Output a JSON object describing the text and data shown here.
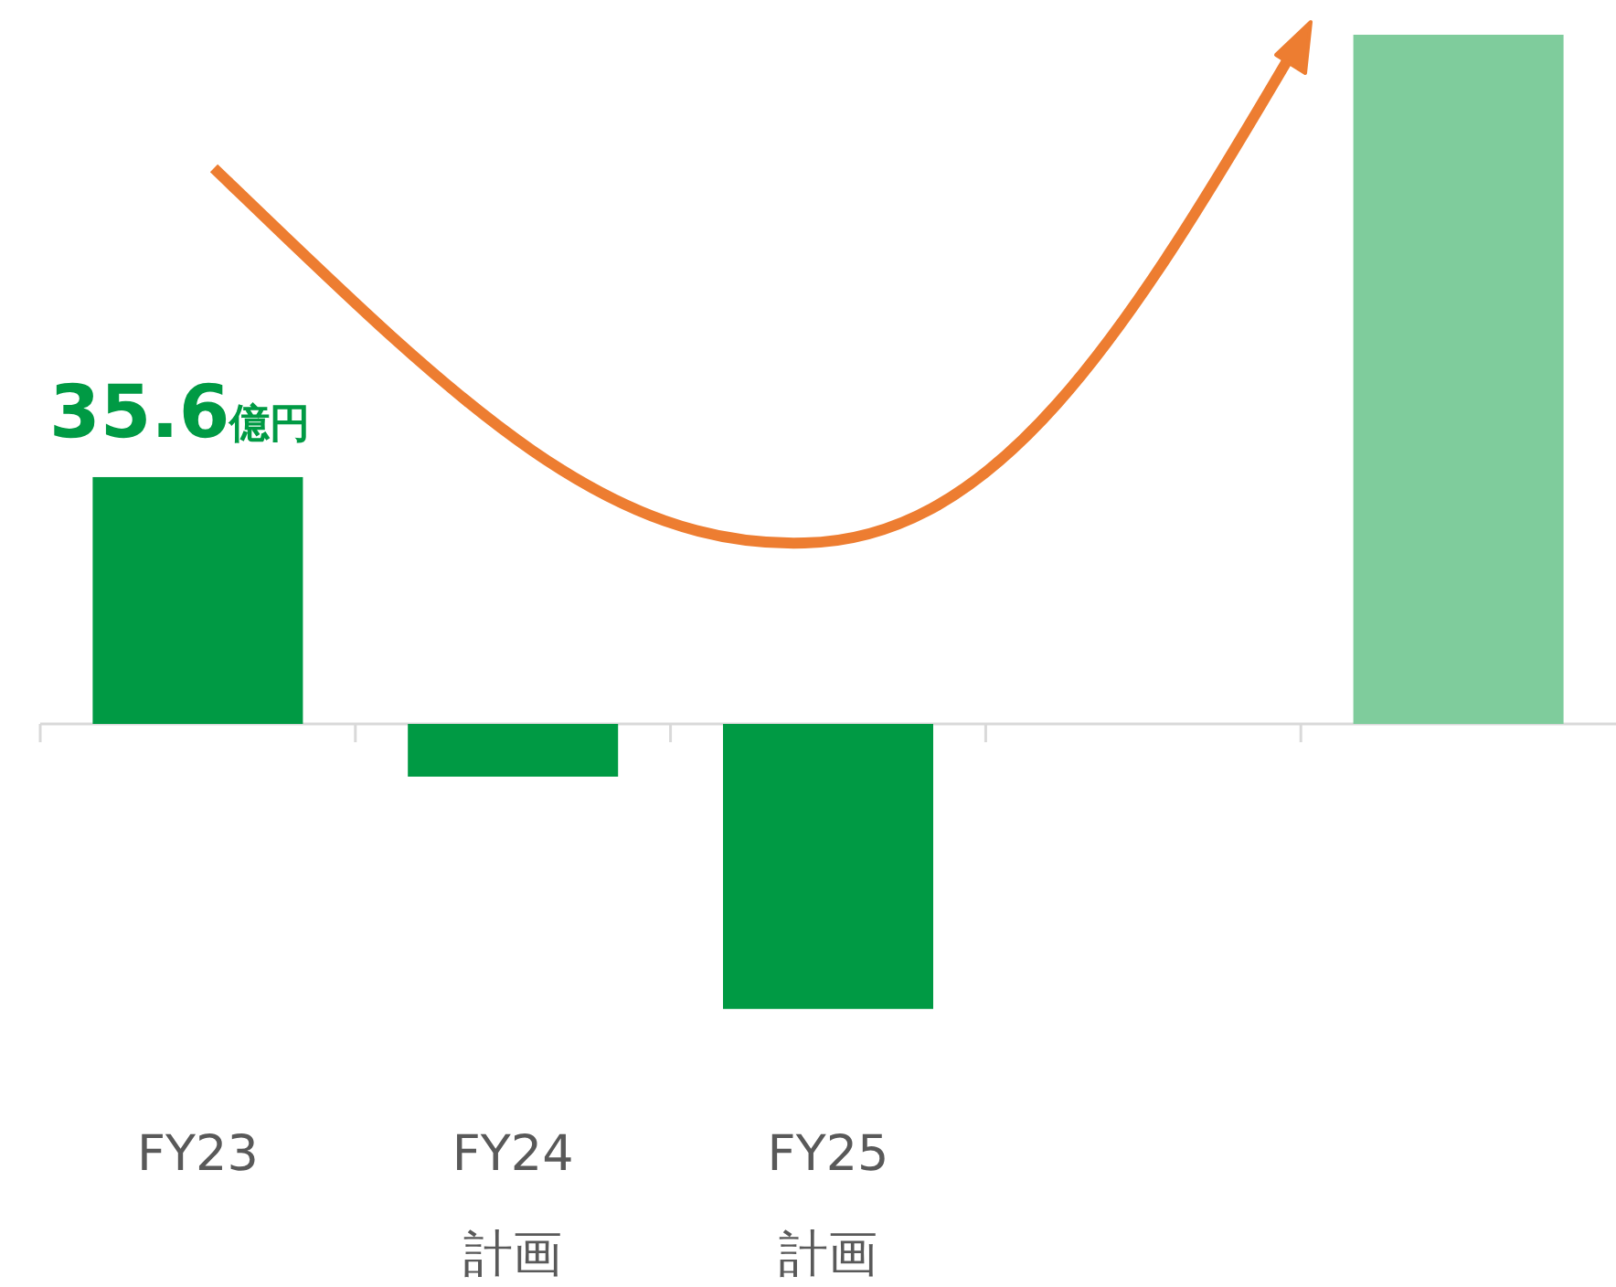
{
  "chart_data": {
    "type": "bar",
    "categories": [
      "FY23",
      "FY24\n計画",
      "FY25\n計画",
      null,
      null
    ],
    "values": [
      35.6,
      -7.6,
      -41.1,
      null,
      99.4
    ],
    "colors": [
      "#009a44",
      "#009a44",
      "#009a44",
      null,
      "#7fcc9c"
    ],
    "value_labels": [
      "35.6億円",
      null,
      null,
      null,
      null
    ]
  }
}
